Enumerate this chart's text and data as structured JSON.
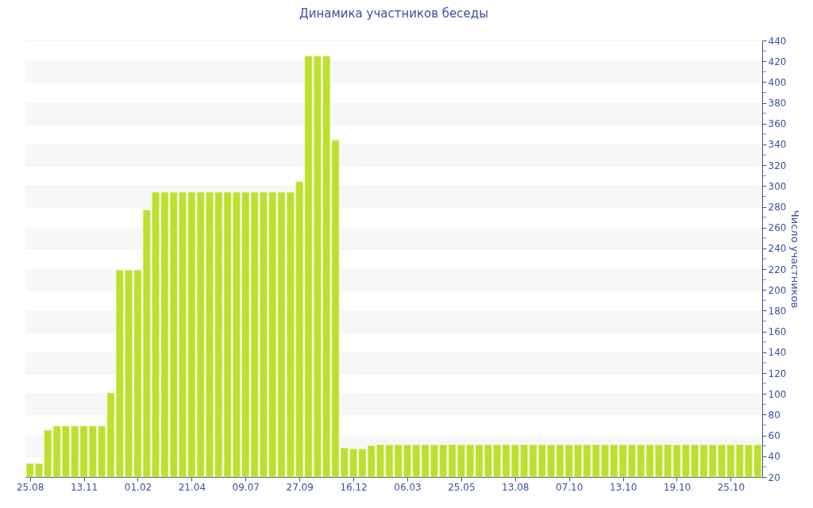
{
  "chart_data": {
    "type": "bar",
    "title": "Динамика участников беседы",
    "ylabel": "Число участников",
    "categories": [
      "25.08",
      null,
      null,
      null,
      null,
      null,
      "13.11",
      null,
      null,
      null,
      null,
      null,
      "01.02",
      null,
      null,
      null,
      null,
      null,
      "21.04",
      null,
      null,
      null,
      null,
      null,
      "09.07",
      null,
      null,
      null,
      null,
      null,
      "27.09",
      null,
      null,
      null,
      null,
      null,
      "16.12",
      null,
      null,
      null,
      null,
      null,
      "06.03",
      null,
      null,
      null,
      null,
      null,
      "25.05",
      null,
      null,
      null,
      null,
      null,
      "13.08",
      null,
      null,
      null,
      null,
      null,
      "07.10",
      null,
      null,
      null,
      null,
      null,
      "13.10",
      null,
      null,
      null,
      null,
      null,
      "19.10",
      null,
      null,
      null,
      null,
      null,
      "25.10",
      null,
      null,
      null
    ],
    "values": [
      33,
      33,
      65,
      69,
      69,
      69,
      69,
      69,
      69,
      101,
      219,
      219,
      219,
      277,
      294,
      294,
      294,
      294,
      294,
      294,
      294,
      294,
      294,
      294,
      294,
      294,
      294,
      294,
      294,
      294,
      304,
      425,
      425,
      425,
      344,
      48,
      47,
      47,
      50,
      51,
      51,
      51,
      51,
      51,
      51,
      51,
      51,
      51,
      51,
      51,
      51,
      51,
      51,
      51,
      51,
      51,
      51,
      51,
      51,
      51,
      51,
      51,
      51,
      51,
      51,
      51,
      51,
      51,
      51,
      51,
      51,
      51,
      51,
      51,
      51,
      51,
      51,
      51,
      51,
      51,
      51,
      51
    ],
    "color": "#bde02e",
    "ylim": [
      20,
      440
    ],
    "yticks": [
      20,
      {
        "value": 30,
        "label": null
      },
      40,
      {
        "value": 50,
        "label": null
      },
      60,
      {
        "value": 70,
        "label": null
      },
      80,
      {
        "value": 90,
        "label": null
      },
      100,
      {
        "value": 110,
        "label": null
      },
      120,
      {
        "value": 130,
        "label": null
      },
      140,
      {
        "value": 150,
        "label": null
      },
      160,
      {
        "value": 170,
        "label": null
      },
      180,
      {
        "value": 190,
        "label": null
      },
      200,
      {
        "value": 210,
        "label": null
      },
      220,
      {
        "value": 230,
        "label": null
      },
      240,
      {
        "value": 250,
        "label": null
      },
      260,
      {
        "value": 270,
        "label": null
      },
      280,
      {
        "value": 290,
        "label": null
      },
      300,
      {
        "value": 310,
        "label": null
      },
      320,
      {
        "value": 330,
        "label": null
      },
      340,
      {
        "value": 350,
        "label": null
      },
      360,
      {
        "value": 370,
        "label": null
      },
      380,
      {
        "value": 390,
        "label": null
      },
      400,
      {
        "value": 410,
        "label": null
      },
      420,
      {
        "value": 430,
        "label": null
      },
      440
    ],
    "grid": true
  }
}
